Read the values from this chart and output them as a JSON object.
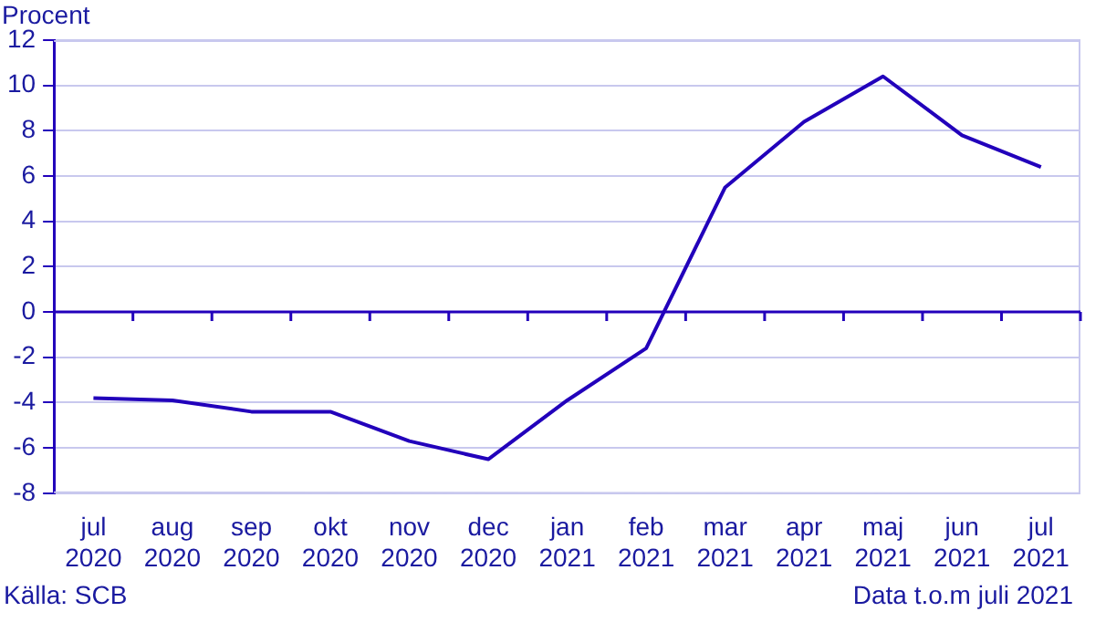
{
  "chart_data": {
    "type": "line",
    "ylabel": "Procent",
    "categories": [
      "jul 2020",
      "aug 2020",
      "sep 2020",
      "okt 2020",
      "nov 2020",
      "dec 2020",
      "jan 2021",
      "feb 2021",
      "mar 2021",
      "apr 2021",
      "maj 2021",
      "jun 2021",
      "jul 2021"
    ],
    "series": [
      {
        "color": "#2200bb",
        "values": [
          -3.8,
          -3.9,
          -4.4,
          -4.4,
          -5.7,
          -6.5,
          -3.9,
          -1.6,
          5.5,
          8.4,
          10.4,
          7.8,
          6.4
        ]
      }
    ],
    "ref_lines": [
      {
        "axis": "y",
        "value": 0,
        "color": "#2200bb"
      }
    ],
    "ylim": [
      -8,
      12
    ],
    "yticks": [
      -8,
      -6,
      -4,
      -2,
      0,
      2,
      4,
      6,
      8,
      10,
      12
    ],
    "grid": "y",
    "legend": false,
    "marker": "none",
    "line_style": "solid",
    "annotations": [
      "Källa: SCB",
      "Data t.o.m juli 2021"
    ]
  }
}
